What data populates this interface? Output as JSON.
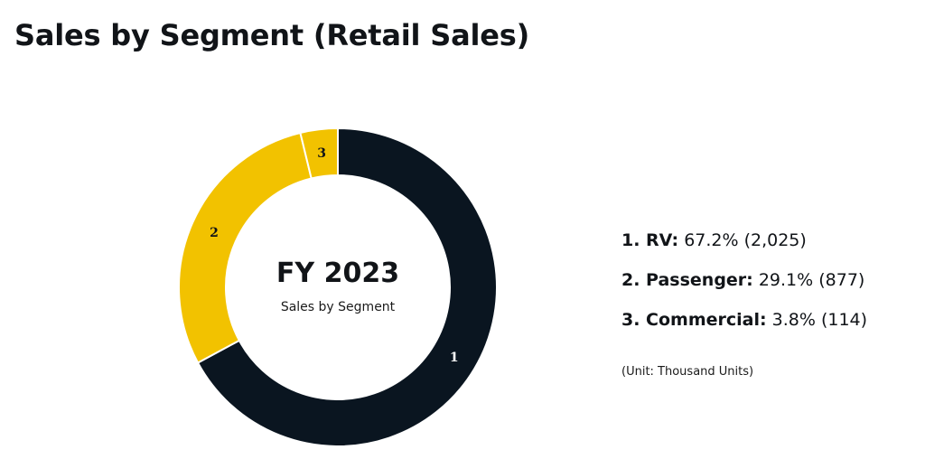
{
  "page": {
    "title": "Sales by Segment (Retail Sales)"
  },
  "chart_data": {
    "type": "pie",
    "donut": true,
    "center_title": "FY 2023",
    "center_subtitle": "Sales by Segment",
    "slices": [
      {
        "label": "1",
        "name": "RV",
        "percent": 67.2,
        "value": 2025,
        "percent_text": "67.2%",
        "value_text": "2,025",
        "color": "#0a1520",
        "label_color": "#ffffff"
      },
      {
        "label": "2",
        "name": "Passenger",
        "percent": 29.1,
        "value": 877,
        "percent_text": "29.1%",
        "value_text": "877",
        "color": "#f2c200",
        "label_color": "#111418"
      },
      {
        "label": "3",
        "name": "Commercial",
        "percent": 3.8,
        "value": 114,
        "percent_text": "3.8%",
        "value_text": "114",
        "color": "#f2c200",
        "label_color": "#111418"
      }
    ],
    "legend": [
      {
        "label": "1. RV:",
        "detail": "67.2% (2,025)"
      },
      {
        "label": "2. Passenger:",
        "detail": "29.1% (877)"
      },
      {
        "label": "3. Commercial:",
        "detail": "3.8% (114)"
      }
    ],
    "unit_note": "(Unit: Thousand Units)",
    "legend_position": "right"
  }
}
